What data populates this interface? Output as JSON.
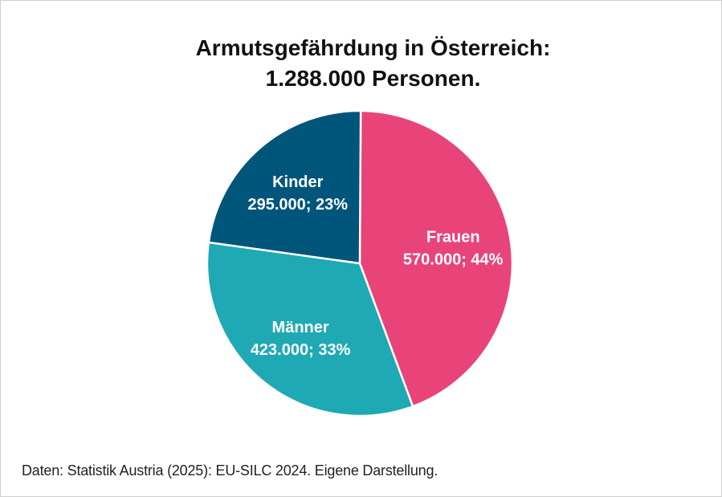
{
  "title": {
    "line1": "Armutsgefährdung in Österreich:",
    "line2": "1.288.000 Personen."
  },
  "source": "Daten: Statistik Austria (2025): EU-SILC 2024. Eigene Darstellung.",
  "chart_data": {
    "type": "pie",
    "title": "Armutsgefährdung in Österreich: 1.288.000 Personen.",
    "total": 1288000,
    "start": "12 o'clock, clockwise",
    "slices": [
      {
        "key": "frauen",
        "label": "Frauen",
        "value": 570000,
        "percent": 44,
        "value_text": "570.000; 44%",
        "color": "#E8447A"
      },
      {
        "key": "maenner",
        "label": "Männer",
        "value": 423000,
        "percent": 33,
        "value_text": "423.000; 33%",
        "color": "#1FA9B4"
      },
      {
        "key": "kinder",
        "label": "Kinder",
        "value": 295000,
        "percent": 23,
        "value_text": "295.000; 23%",
        "color": "#00557A"
      }
    ]
  }
}
